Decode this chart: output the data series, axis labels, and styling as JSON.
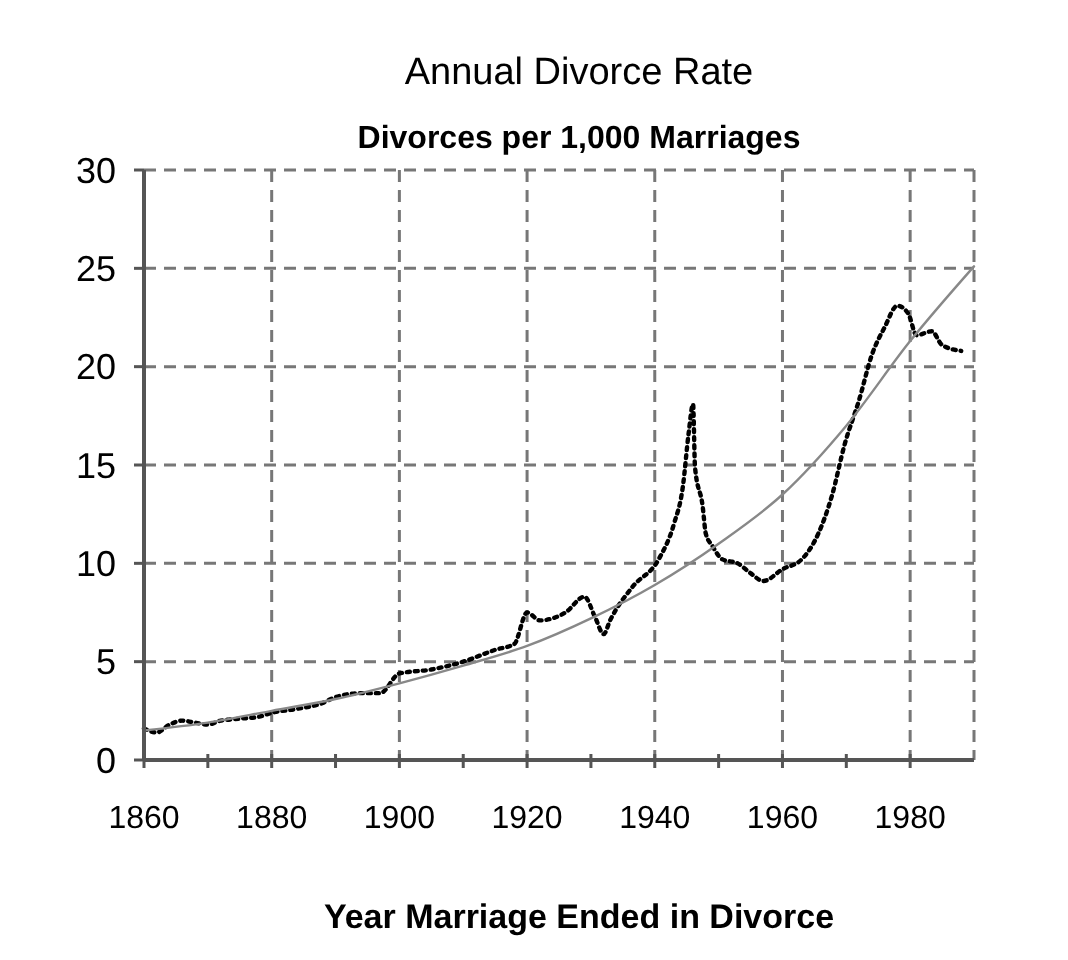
{
  "chart_data": {
    "type": "line",
    "title": "Annual Divorce Rate",
    "subtitle": "Divorces per 1,000 Marriages",
    "xlabel": "Year Marriage Ended in Divorce",
    "xlim": [
      1860,
      1990
    ],
    "xticks": [
      1860,
      {
        "value": 1870,
        "label": null
      },
      1880,
      {
        "value": 1890,
        "label": null
      },
      1900,
      {
        "value": 1910,
        "label": null
      },
      1920,
      {
        "value": 1930,
        "label": null
      },
      1940,
      {
        "value": 1950,
        "label": null
      },
      1960,
      {
        "value": 1970,
        "label": null
      },
      1980
    ],
    "ylim": [
      0,
      30
    ],
    "yticks": [
      0,
      5,
      10,
      15,
      20,
      25,
      30
    ],
    "grid": true,
    "series": [
      {
        "color": "#000000",
        "line_style": "dotted",
        "x": [
          1860,
          1862,
          1864,
          1866,
          1868,
          1870,
          1872,
          1875,
          1878,
          1880,
          1884,
          1888,
          1890,
          1894,
          1897,
          1900,
          1905,
          1910,
          1915,
          1918,
          1920,
          1922,
          1926,
          1929,
          1930.6,
          1932,
          1933,
          1936.5,
          1940.6,
          1943,
          1944.4,
          1945.3,
          1946,
          1946.3,
          1947.5,
          1948,
          1949,
          1950.6,
          1953,
          1955,
          1957,
          1960,
          1963,
          1965.6,
          1967.8,
          1969.7,
          1972,
          1974,
          1976,
          1978,
          1979.7,
          1981,
          1983.4,
          1985,
          1988
        ],
        "values": [
          1.6,
          1.4,
          1.8,
          2.0,
          1.9,
          1.8,
          2.0,
          2.1,
          2.2,
          2.4,
          2.6,
          2.9,
          3.2,
          3.4,
          3.4,
          4.4,
          4.6,
          5.0,
          5.6,
          5.9,
          7.5,
          7.1,
          7.5,
          8.3,
          7.3,
          6.4,
          7.1,
          8.8,
          10.2,
          12.0,
          13.9,
          16.6,
          18.1,
          14.9,
          12.9,
          11.5,
          10.9,
          10.2,
          10.0,
          9.5,
          9.1,
          9.7,
          10.2,
          11.5,
          13.5,
          16.0,
          18.3,
          20.6,
          22.0,
          23.1,
          22.7,
          21.6,
          21.8,
          21.1,
          20.8
        ]
      },
      {
        "color": "#888888",
        "line_style": "solid",
        "x": [
          1860,
          1870,
          1880,
          1890,
          1900,
          1910,
          1920,
          1930,
          1940,
          1950,
          1960,
          1970,
          1980,
          1990
        ],
        "values": [
          1.5,
          1.9,
          2.5,
          3.1,
          3.9,
          4.8,
          5.8,
          7.2,
          8.9,
          11.0,
          13.5,
          17.0,
          21.3,
          25.1
        ]
      }
    ]
  }
}
